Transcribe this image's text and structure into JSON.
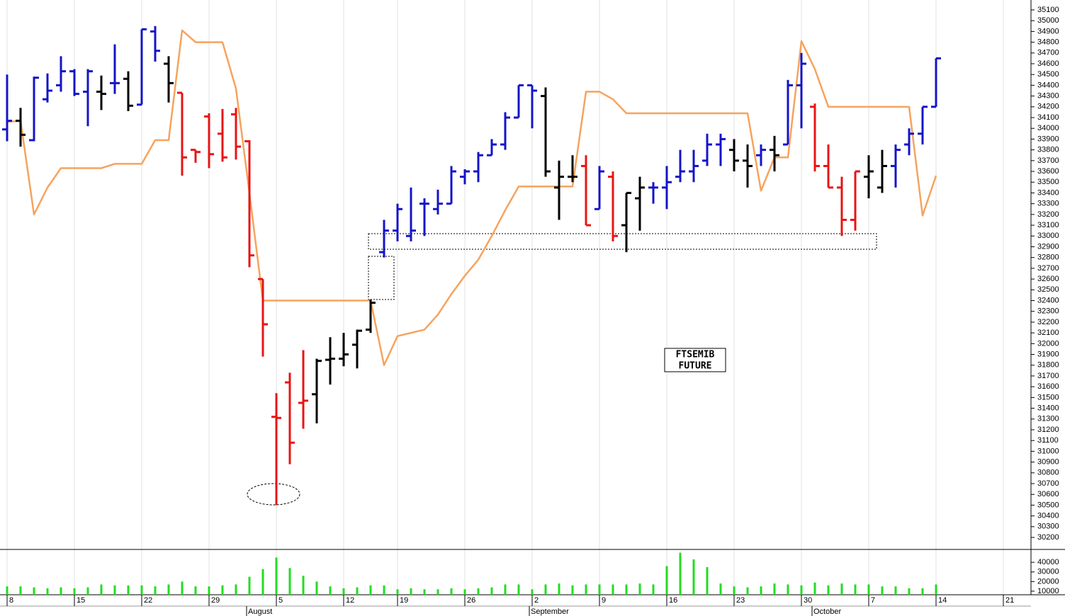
{
  "chart_data": {
    "type": "ohlc",
    "categories": [
      "8",
      null,
      null,
      null,
      null,
      "15",
      null,
      null,
      null,
      null,
      "22",
      null,
      null,
      null,
      null,
      "29",
      null,
      null,
      null,
      null,
      "5",
      null,
      null,
      null,
      null,
      "12",
      null,
      null,
      null,
      "19",
      null,
      null,
      null,
      null,
      "26",
      null,
      null,
      null,
      null,
      "2",
      null,
      null,
      null,
      null,
      "9",
      null,
      null,
      null,
      null,
      "16",
      null,
      null,
      null,
      null,
      "23",
      null,
      null,
      null,
      null,
      "30",
      null,
      null,
      null,
      null,
      "7",
      null,
      null,
      null,
      null,
      "14",
      null,
      null,
      null,
      null,
      "21",
      null,
      null
    ],
    "month_labels": [
      {
        "category": 18,
        "label": "August"
      },
      {
        "category": 39,
        "label": "September"
      },
      {
        "category": 60,
        "label": "October"
      }
    ],
    "open": [
      33990,
      34070,
      33890,
      34270,
      34400,
      34530,
      34340,
      34340,
      34420,
      34460,
      34220,
      34900,
      34600,
      34330,
      33800,
      34110,
      33950,
      34130,
      33880,
      32600,
      31320,
      31640,
      31450,
      31530,
      31850,
      31860,
      31990,
      32130,
      32850,
      33050,
      33000,
      33300,
      33250,
      33300,
      33550,
      33600,
      33750,
      33850,
      34100,
      34400,
      34300,
      33450,
      33550,
      33650,
      33250,
      33550,
      33100,
      33350,
      33450,
      33450,
      33550,
      33600,
      33700,
      33850,
      33800,
      33700,
      33750,
      33800,
      33850,
      34400,
      34200,
      33650,
      33450,
      33150,
      33550,
      33450,
      33650,
      33850,
      33950,
      34200,
      null,
      null,
      null,
      null,
      null,
      null,
      null
    ],
    "high": [
      34500,
      34190,
      34480,
      34510,
      34670,
      34550,
      34550,
      34490,
      34780,
      34530,
      34920,
      34950,
      34670,
      34330,
      33800,
      34140,
      34180,
      34190,
      33890,
      32600,
      31540,
      31730,
      31940,
      31860,
      32060,
      32100,
      32130,
      32410,
      33150,
      33300,
      33450,
      33350,
      33430,
      33650,
      33620,
      33780,
      33900,
      34150,
      34400,
      34400,
      34380,
      33700,
      33750,
      33750,
      33650,
      33600,
      33400,
      33550,
      33500,
      33650,
      33800,
      33800,
      33950,
      33950,
      33900,
      33850,
      33850,
      33930,
      34450,
      34700,
      34230,
      33850,
      33550,
      33600,
      33750,
      33800,
      33850,
      34000,
      34200,
      34650,
      null,
      null,
      null,
      null,
      null,
      null,
      null
    ],
    "low": [
      33880,
      33830,
      33880,
      34240,
      34340,
      34300,
      34020,
      34170,
      34320,
      34160,
      34220,
      34620,
      34240,
      33560,
      33680,
      33630,
      33690,
      33710,
      32710,
      31880,
      30500,
      30880,
      31210,
      31260,
      31620,
      31790,
      31770,
      32100,
      32800,
      32950,
      32950,
      33000,
      33200,
      33300,
      33480,
      33500,
      33750,
      33800,
      34100,
      34000,
      33550,
      33150,
      33500,
      33100,
      33250,
      32950,
      32850,
      33050,
      33300,
      33250,
      33500,
      33500,
      33650,
      33650,
      33600,
      33450,
      33650,
      33600,
      33850,
      34000,
      33600,
      33450,
      33000,
      33050,
      33350,
      33400,
      33450,
      33750,
      33850,
      34200,
      null,
      null,
      null,
      null,
      null,
      null,
      null
    ],
    "close": [
      34070,
      33940,
      34470,
      34350,
      34530,
      34320,
      34530,
      34320,
      34420,
      34210,
      34920,
      34720,
      34420,
      33730,
      33780,
      33760,
      33730,
      33830,
      32820,
      32180,
      31310,
      31080,
      31470,
      31840,
      31860,
      31900,
      32120,
      32380,
      33050,
      33250,
      33050,
      33300,
      33300,
      33600,
      33600,
      33750,
      33850,
      34100,
      34400,
      34350,
      33600,
      33550,
      33550,
      33100,
      33600,
      33000,
      33400,
      33450,
      33450,
      33500,
      33600,
      33650,
      33850,
      33900,
      33700,
      33650,
      33800,
      33750,
      34400,
      34600,
      33650,
      33450,
      33150,
      33600,
      33600,
      33650,
      33800,
      33950,
      34200,
      34650,
      null,
      null,
      null,
      null,
      null,
      null,
      null
    ],
    "bar_colors": [
      "#1414c8",
      "#000000",
      "#1414c8",
      "#1414c8",
      "#1414c8",
      "#1414c8",
      "#1414c8",
      "#000000",
      "#1414c8",
      "#000000",
      "#1414c8",
      "#1414c8",
      "#000000",
      "#e81414",
      "#e81414",
      "#e81414",
      "#e81414",
      "#e81414",
      "#e81414",
      "#e81414",
      "#e81414",
      "#e81414",
      "#e81414",
      "#000000",
      "#000000",
      "#000000",
      "#000000",
      "#000000",
      "#1414c8",
      "#1414c8",
      "#1414c8",
      "#1414c8",
      "#1414c8",
      "#1414c8",
      "#1414c8",
      "#1414c8",
      "#1414c8",
      "#1414c8",
      "#1414c8",
      "#1414c8",
      "#000000",
      "#000000",
      "#000000",
      "#e81414",
      "#1414c8",
      "#e81414",
      "#000000",
      "#000000",
      "#1414c8",
      "#1414c8",
      "#1414c8",
      "#1414c8",
      "#1414c8",
      "#1414c8",
      "#000000",
      "#000000",
      "#1414c8",
      "#000000",
      "#1414c8",
      "#1414c8",
      "#e81414",
      "#e81414",
      "#e81414",
      "#e81414",
      "#000000",
      "#000000",
      "#1414c8",
      "#1414c8",
      "#1414c8",
      "#1414c8",
      null,
      null,
      null,
      null,
      null,
      null,
      null
    ],
    "overlay": {
      "color": "#f6a35e",
      "values": [
        34060,
        34070,
        33200,
        33450,
        33630,
        33630,
        33630,
        33630,
        33670,
        33670,
        33670,
        33890,
        33890,
        34910,
        34800,
        34800,
        34800,
        34370,
        33400,
        32400,
        32400,
        32400,
        32400,
        32400,
        32400,
        32400,
        32400,
        32400,
        31800,
        32070,
        32100,
        32130,
        32270,
        32460,
        32630,
        32780,
        33000,
        33240,
        33460,
        33460,
        33460,
        33460,
        33460,
        34340,
        34340,
        34270,
        34140,
        34140,
        34140,
        34140,
        34140,
        34140,
        34140,
        34140,
        34140,
        34140,
        33420,
        33730,
        33730,
        34810,
        34550,
        34200,
        34200,
        34200,
        34200,
        34200,
        34200,
        34200,
        33190,
        33560,
        null,
        null,
        null,
        null,
        null,
        null,
        null
      ]
    },
    "ylim": [
      30095,
      35192
    ],
    "yticks": [
      30200,
      30300,
      30400,
      30500,
      30600,
      30700,
      30800,
      30900,
      31000,
      31100,
      31200,
      31300,
      31400,
      31500,
      31600,
      31700,
      31800,
      31900,
      32000,
      32100,
      32200,
      32300,
      32400,
      32500,
      32600,
      32700,
      32800,
      32900,
      33000,
      33100,
      33200,
      33300,
      33400,
      33500,
      33600,
      33700,
      33800,
      33900,
      34000,
      34100,
      34200,
      34300,
      34400,
      34500,
      34600,
      34700,
      34800,
      34900,
      35000,
      35100
    ],
    "volume": {
      "color": "#22dd22",
      "ylim": [
        6300,
        52600
      ],
      "yticks": [
        10000,
        20000,
        30000,
        40000
      ],
      "values": [
        15000,
        15000,
        14000,
        13000,
        14000,
        13000,
        14000,
        17000,
        16000,
        16000,
        16000,
        15000,
        17000,
        20000,
        15000,
        15000,
        16000,
        17000,
        25000,
        33000,
        45000,
        34000,
        26000,
        20000,
        15000,
        13000,
        14000,
        16000,
        16000,
        12000,
        13000,
        12000,
        12000,
        13000,
        12000,
        13000,
        14000,
        17000,
        17000,
        12000,
        17000,
        18000,
        16000,
        17000,
        17000,
        17000,
        17000,
        18000,
        17000,
        36000,
        50000,
        43000,
        35000,
        18000,
        15000,
        14000,
        15000,
        18000,
        17000,
        16000,
        19000,
        16000,
        18000,
        17000,
        17000,
        15000,
        15000,
        13000,
        13000,
        17000,
        null,
        null,
        null,
        null,
        null,
        null,
        null
      ]
    },
    "annotations": [
      "FTSEMIB",
      "FUTURE"
    ]
  }
}
